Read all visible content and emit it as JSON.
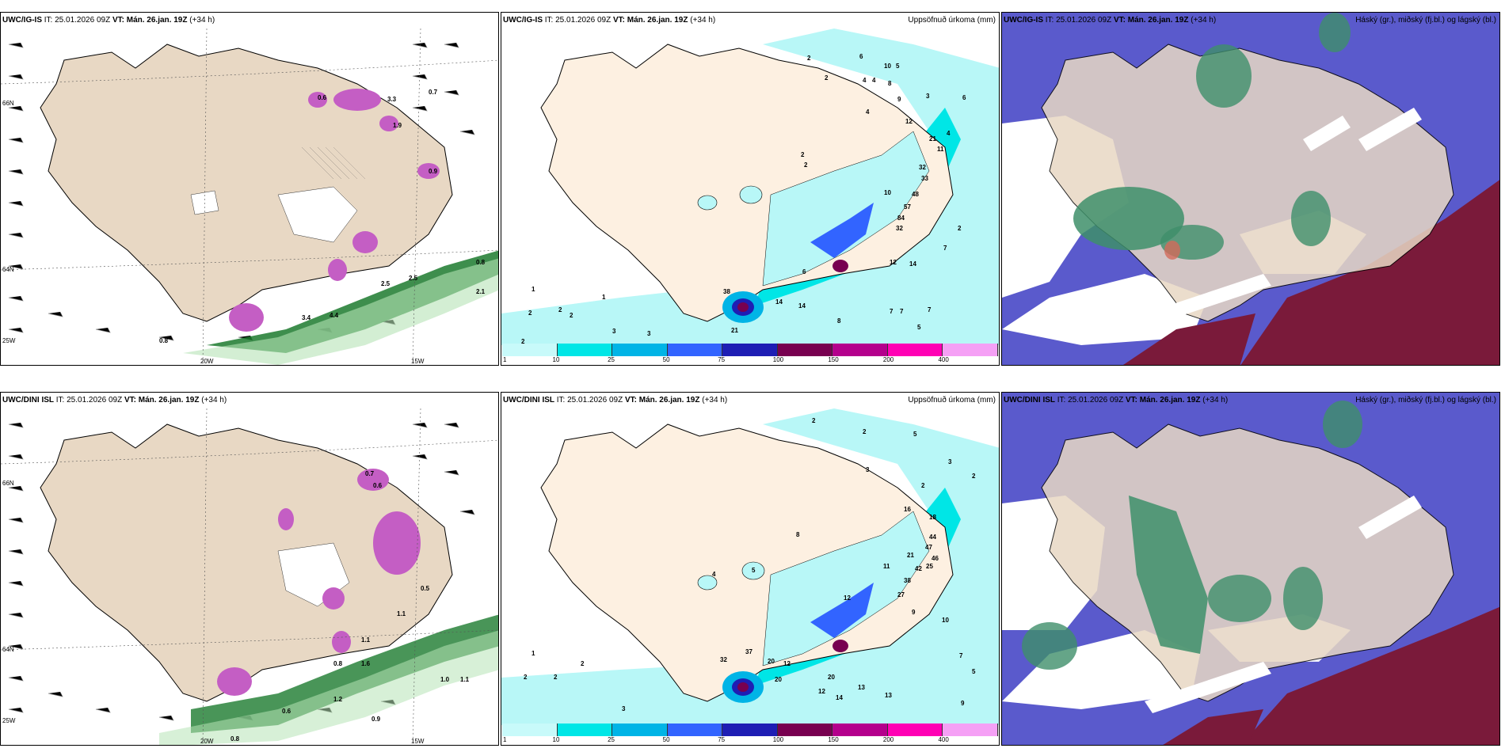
{
  "panels": {
    "top_left": {
      "model": "UWC/IG-IS",
      "it_label": "IT:",
      "it": "25.01.2026 09Z",
      "vt_label": "VT:",
      "vt": "Mán. 26.jan. 19Z",
      "lead": "(+34 h)",
      "right_title": ""
    },
    "top_mid": {
      "model": "UWC/IG-IS",
      "it_label": "IT:",
      "it": "25.01.2026 09Z",
      "vt_label": "VT:",
      "vt": "Mán. 26.jan. 19Z",
      "lead": "(+34 h)",
      "right_title": "Uppsöfnuð úrkoma (mm)"
    },
    "top_right": {
      "model": "UWC/IG-IS",
      "it_label": "IT:",
      "it": "25.01.2026 09Z",
      "vt_label": "VT:",
      "vt": "Mán. 26.jan. 19Z",
      "lead": "(+34 h)",
      "right_title": "Háský (gr.), miðský (fj.bl.) og lágský (bl.)"
    },
    "bot_left": {
      "model": "UWC/DINI ISL",
      "it_label": "IT:",
      "it": "25.01.2026 09Z",
      "vt_label": "VT:",
      "vt": "Mán. 26.jan. 19Z",
      "lead": "(+34 h)",
      "right_title": ""
    },
    "bot_mid": {
      "model": "UWC/DINI ISL",
      "it_label": "IT:",
      "it": "25.01.2026 09Z",
      "vt_label": "VT:",
      "vt": "Mán. 26.jan. 19Z",
      "lead": "(+34 h)",
      "right_title": "Uppsöfnuð úrkoma (mm)"
    },
    "bot_right": {
      "model": "UWC/DINI ISL",
      "it_label": "IT:",
      "it": "25.01.2026 09Z",
      "vt_label": "VT:",
      "vt": "Mán. 26.jan. 19Z",
      "lead": "(+34 h)",
      "right_title": "Háský (gr.), miðský (fj.bl.) og lágský (bl.)"
    }
  },
  "axis_labels": {
    "lat66": "66N",
    "lat64": "64N",
    "lon25": "25W",
    "lon20": "20W",
    "lon15": "15W"
  },
  "colorbar": {
    "ticks": [
      "1",
      "10",
      "25",
      "50",
      "75",
      "100",
      "150",
      "200",
      "400"
    ],
    "colors": [
      "#c8fafa",
      "#00e6e6",
      "#00b4e6",
      "#3264ff",
      "#1e1eb4",
      "#780050",
      "#b4008c",
      "#ff00b4",
      "#f5a0f5"
    ]
  },
  "precip_top": [
    "2",
    "6",
    "10",
    "5",
    "2",
    "4",
    "4",
    "8",
    "6",
    "3",
    "4",
    "9",
    "12",
    "21",
    "11",
    "4",
    "2",
    "2",
    "32",
    "33",
    "10",
    "48",
    "57",
    "84",
    "32",
    "2",
    "7",
    "12",
    "14",
    "6",
    "7",
    "7",
    "7",
    "1",
    "2",
    "2",
    "2",
    "1",
    "38",
    "14",
    "14",
    "21",
    "3",
    "3",
    "2",
    "8",
    "5"
  ],
  "precip_bot": [
    "2",
    "2",
    "5",
    "3",
    "3",
    "2",
    "2",
    "16",
    "18",
    "44",
    "47",
    "46",
    "42",
    "25",
    "21",
    "11",
    "8",
    "12",
    "27",
    "38",
    "9",
    "10",
    "7",
    "5",
    "1",
    "2",
    "2",
    "2",
    "32",
    "37",
    "20",
    "12",
    "20",
    "20",
    "13",
    "12",
    "13",
    "14",
    "9",
    "3",
    "4",
    "5"
  ],
  "snow_top": [
    "0.6",
    "0.7",
    "3.3",
    "0.9",
    "1.9",
    "0.8",
    "2.5",
    "2.5",
    "2.1",
    "0.8",
    "3.4",
    "4.4"
  ],
  "snow_bot": [
    "0.7",
    "0.6",
    "1.1",
    "0.5",
    "0.8",
    "1.1",
    "1.6",
    "1.2",
    "0.6",
    "0.8",
    "0.9",
    "1.0",
    "1.1"
  ]
}
